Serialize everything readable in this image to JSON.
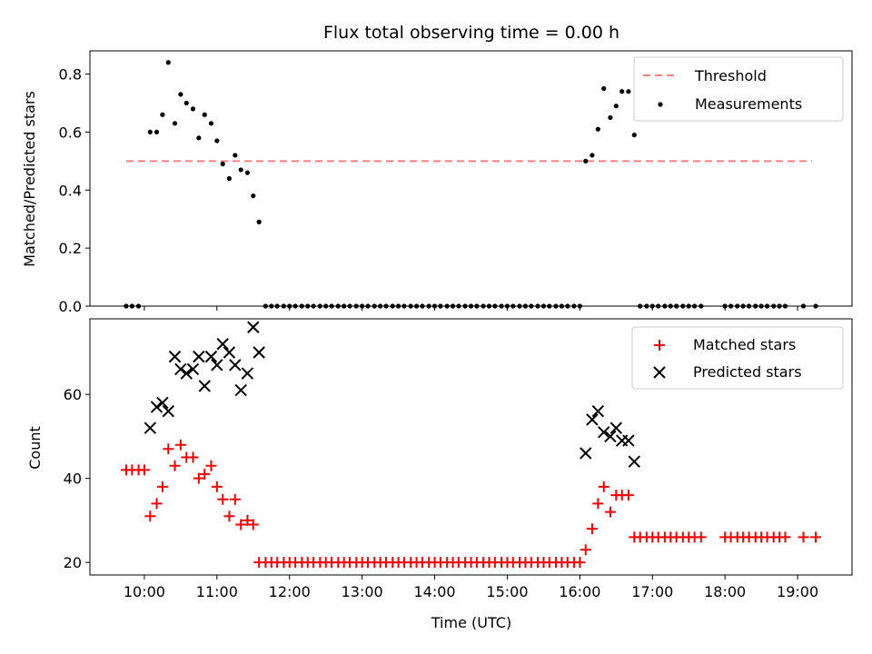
{
  "chart_data": [
    {
      "type": "scatter",
      "title": "Flux total observing time = 0.00 h",
      "xlabel": "",
      "ylabel": "Matched/Predicted stars",
      "ylim": [
        0,
        0.88
      ],
      "yticks": [
        0.0,
        0.2,
        0.4,
        0.6,
        0.8
      ],
      "ytick_labels": [
        "0.0",
        "0.2",
        "0.4",
        "0.6",
        "0.8"
      ],
      "threshold": {
        "name": "Threshold",
        "value": 0.5,
        "x_start": 9.75,
        "x_end": 19.2,
        "color": "#ff7f7f"
      },
      "series": [
        {
          "name": "Measurements",
          "color": "#000000",
          "marker": "dot",
          "points": [
            [
              9.75,
              0
            ],
            [
              9.83,
              0
            ],
            [
              9.92,
              0
            ],
            [
              10.08,
              0.6
            ],
            [
              10.17,
              0.6
            ],
            [
              10.25,
              0.66
            ],
            [
              10.33,
              0.84
            ],
            [
              10.42,
              0.63
            ],
            [
              10.5,
              0.73
            ],
            [
              10.58,
              0.7
            ],
            [
              10.67,
              0.68
            ],
            [
              10.75,
              0.58
            ],
            [
              10.83,
              0.66
            ],
            [
              10.92,
              0.63
            ],
            [
              11.0,
              0.57
            ],
            [
              11.08,
              0.49
            ],
            [
              11.17,
              0.44
            ],
            [
              11.25,
              0.52
            ],
            [
              11.33,
              0.47
            ],
            [
              11.42,
              0.46
            ],
            [
              11.5,
              0.38
            ],
            [
              11.58,
              0.29
            ],
            [
              11.67,
              0
            ],
            [
              11.75,
              0
            ],
            [
              11.83,
              0
            ],
            [
              11.92,
              0
            ],
            [
              12.0,
              0
            ],
            [
              12.08,
              0
            ],
            [
              12.17,
              0
            ],
            [
              12.25,
              0
            ],
            [
              12.33,
              0
            ],
            [
              12.42,
              0
            ],
            [
              12.5,
              0
            ],
            [
              12.58,
              0
            ],
            [
              12.67,
              0
            ],
            [
              12.75,
              0
            ],
            [
              12.83,
              0
            ],
            [
              12.92,
              0
            ],
            [
              13.0,
              0
            ],
            [
              13.08,
              0
            ],
            [
              13.17,
              0
            ],
            [
              13.25,
              0
            ],
            [
              13.33,
              0
            ],
            [
              13.42,
              0
            ],
            [
              13.5,
              0
            ],
            [
              13.58,
              0
            ],
            [
              13.67,
              0
            ],
            [
              13.75,
              0
            ],
            [
              13.83,
              0
            ],
            [
              13.92,
              0
            ],
            [
              14.0,
              0
            ],
            [
              14.08,
              0
            ],
            [
              14.17,
              0
            ],
            [
              14.25,
              0
            ],
            [
              14.33,
              0
            ],
            [
              14.42,
              0
            ],
            [
              14.5,
              0
            ],
            [
              14.58,
              0
            ],
            [
              14.67,
              0
            ],
            [
              14.75,
              0
            ],
            [
              14.83,
              0
            ],
            [
              14.92,
              0
            ],
            [
              15.0,
              0
            ],
            [
              15.08,
              0
            ],
            [
              15.17,
              0
            ],
            [
              15.25,
              0
            ],
            [
              15.33,
              0
            ],
            [
              15.42,
              0
            ],
            [
              15.5,
              0
            ],
            [
              15.58,
              0
            ],
            [
              15.67,
              0
            ],
            [
              15.75,
              0
            ],
            [
              15.83,
              0
            ],
            [
              15.92,
              0
            ],
            [
              16.0,
              0
            ],
            [
              16.08,
              0.5
            ],
            [
              16.17,
              0.52
            ],
            [
              16.25,
              0.61
            ],
            [
              16.33,
              0.75
            ],
            [
              16.42,
              0.65
            ],
            [
              16.5,
              0.69
            ],
            [
              16.58,
              0.74
            ],
            [
              16.67,
              0.74
            ],
            [
              16.75,
              0.59
            ],
            [
              16.83,
              0
            ],
            [
              16.92,
              0
            ],
            [
              17.0,
              0
            ],
            [
              17.08,
              0
            ],
            [
              17.17,
              0
            ],
            [
              17.25,
              0
            ],
            [
              17.33,
              0
            ],
            [
              17.42,
              0
            ],
            [
              17.5,
              0
            ],
            [
              17.58,
              0
            ],
            [
              17.67,
              0
            ],
            [
              18.0,
              0
            ],
            [
              18.08,
              0
            ],
            [
              18.17,
              0
            ],
            [
              18.25,
              0
            ],
            [
              18.33,
              0
            ],
            [
              18.42,
              0
            ],
            [
              18.5,
              0
            ],
            [
              18.58,
              0
            ],
            [
              18.67,
              0
            ],
            [
              18.75,
              0
            ],
            [
              18.83,
              0
            ],
            [
              19.08,
              0
            ],
            [
              19.25,
              0
            ]
          ]
        }
      ],
      "legend": {
        "position": "top-right",
        "entries": [
          "Threshold",
          "Measurements"
        ]
      }
    },
    {
      "type": "scatter",
      "title": "",
      "xlabel": "Time (UTC)",
      "ylabel": "Count",
      "xlim": [
        9.25,
        19.75
      ],
      "ylim": [
        17,
        78
      ],
      "xticks": [
        10,
        11,
        12,
        13,
        14,
        15,
        16,
        17,
        18,
        19
      ],
      "xtick_labels": [
        "10:00",
        "11:00",
        "12:00",
        "13:00",
        "14:00",
        "15:00",
        "16:00",
        "17:00",
        "18:00",
        "19:00"
      ],
      "yticks": [
        20,
        40,
        60
      ],
      "ytick_labels": [
        "20",
        "40",
        "60"
      ],
      "series": [
        {
          "name": "Matched stars",
          "color": "#ff0000",
          "marker": "plus",
          "points": [
            [
              9.75,
              42
            ],
            [
              9.83,
              42
            ],
            [
              9.92,
              42
            ],
            [
              10.0,
              42
            ],
            [
              10.08,
              31
            ],
            [
              10.17,
              34
            ],
            [
              10.25,
              38
            ],
            [
              10.33,
              47
            ],
            [
              10.42,
              43
            ],
            [
              10.5,
              48
            ],
            [
              10.58,
              45
            ],
            [
              10.67,
              45
            ],
            [
              10.75,
              40
            ],
            [
              10.83,
              41
            ],
            [
              10.92,
              43
            ],
            [
              11.0,
              38
            ],
            [
              11.08,
              35
            ],
            [
              11.17,
              31
            ],
            [
              11.25,
              35
            ],
            [
              11.33,
              29
            ],
            [
              11.42,
              30
            ],
            [
              11.5,
              29
            ],
            [
              11.58,
              20
            ],
            [
              11.67,
              20
            ],
            [
              11.75,
              20
            ],
            [
              11.83,
              20
            ],
            [
              11.92,
              20
            ],
            [
              12.0,
              20
            ],
            [
              12.08,
              20
            ],
            [
              12.17,
              20
            ],
            [
              12.25,
              20
            ],
            [
              12.33,
              20
            ],
            [
              12.42,
              20
            ],
            [
              12.5,
              20
            ],
            [
              12.58,
              20
            ],
            [
              12.67,
              20
            ],
            [
              12.75,
              20
            ],
            [
              12.83,
              20
            ],
            [
              12.92,
              20
            ],
            [
              13.0,
              20
            ],
            [
              13.08,
              20
            ],
            [
              13.17,
              20
            ],
            [
              13.25,
              20
            ],
            [
              13.33,
              20
            ],
            [
              13.42,
              20
            ],
            [
              13.5,
              20
            ],
            [
              13.58,
              20
            ],
            [
              13.67,
              20
            ],
            [
              13.75,
              20
            ],
            [
              13.83,
              20
            ],
            [
              13.92,
              20
            ],
            [
              14.0,
              20
            ],
            [
              14.08,
              20
            ],
            [
              14.17,
              20
            ],
            [
              14.25,
              20
            ],
            [
              14.33,
              20
            ],
            [
              14.42,
              20
            ],
            [
              14.5,
              20
            ],
            [
              14.58,
              20
            ],
            [
              14.67,
              20
            ],
            [
              14.75,
              20
            ],
            [
              14.83,
              20
            ],
            [
              14.92,
              20
            ],
            [
              15.0,
              20
            ],
            [
              15.08,
              20
            ],
            [
              15.17,
              20
            ],
            [
              15.25,
              20
            ],
            [
              15.33,
              20
            ],
            [
              15.42,
              20
            ],
            [
              15.5,
              20
            ],
            [
              15.58,
              20
            ],
            [
              15.67,
              20
            ],
            [
              15.75,
              20
            ],
            [
              15.83,
              20
            ],
            [
              15.92,
              20
            ],
            [
              16.0,
              20
            ],
            [
              16.08,
              23
            ],
            [
              16.17,
              28
            ],
            [
              16.25,
              34
            ],
            [
              16.33,
              38
            ],
            [
              16.42,
              32
            ],
            [
              16.5,
              36
            ],
            [
              16.58,
              36
            ],
            [
              16.67,
              36
            ],
            [
              16.75,
              26
            ],
            [
              16.83,
              26
            ],
            [
              16.92,
              26
            ],
            [
              17.0,
              26
            ],
            [
              17.08,
              26
            ],
            [
              17.17,
              26
            ],
            [
              17.25,
              26
            ],
            [
              17.33,
              26
            ],
            [
              17.42,
              26
            ],
            [
              17.5,
              26
            ],
            [
              17.58,
              26
            ],
            [
              17.67,
              26
            ],
            [
              18.0,
              26
            ],
            [
              18.08,
              26
            ],
            [
              18.17,
              26
            ],
            [
              18.25,
              26
            ],
            [
              18.33,
              26
            ],
            [
              18.42,
              26
            ],
            [
              18.5,
              26
            ],
            [
              18.58,
              26
            ],
            [
              18.67,
              26
            ],
            [
              18.75,
              26
            ],
            [
              18.83,
              26
            ],
            [
              19.08,
              26
            ],
            [
              19.25,
              26
            ]
          ]
        },
        {
          "name": "Predicted stars",
          "color": "#000000",
          "marker": "x",
          "points": [
            [
              10.08,
              52
            ],
            [
              10.17,
              57
            ],
            [
              10.25,
              58
            ],
            [
              10.33,
              56
            ],
            [
              10.42,
              69
            ],
            [
              10.5,
              66
            ],
            [
              10.58,
              65
            ],
            [
              10.67,
              66
            ],
            [
              10.75,
              69
            ],
            [
              10.83,
              62
            ],
            [
              10.92,
              69
            ],
            [
              11.0,
              67
            ],
            [
              11.08,
              72
            ],
            [
              11.17,
              70
            ],
            [
              11.25,
              67
            ],
            [
              11.33,
              61
            ],
            [
              11.42,
              65
            ],
            [
              11.5,
              76
            ],
            [
              11.58,
              70
            ],
            [
              16.08,
              46
            ],
            [
              16.17,
              54
            ],
            [
              16.25,
              56
            ],
            [
              16.33,
              51
            ],
            [
              16.42,
              50
            ],
            [
              16.5,
              52
            ],
            [
              16.58,
              49
            ],
            [
              16.67,
              49
            ],
            [
              16.75,
              44
            ]
          ]
        }
      ],
      "legend": {
        "position": "top-right",
        "entries": [
          "Matched stars",
          "Predicted stars"
        ]
      }
    }
  ]
}
